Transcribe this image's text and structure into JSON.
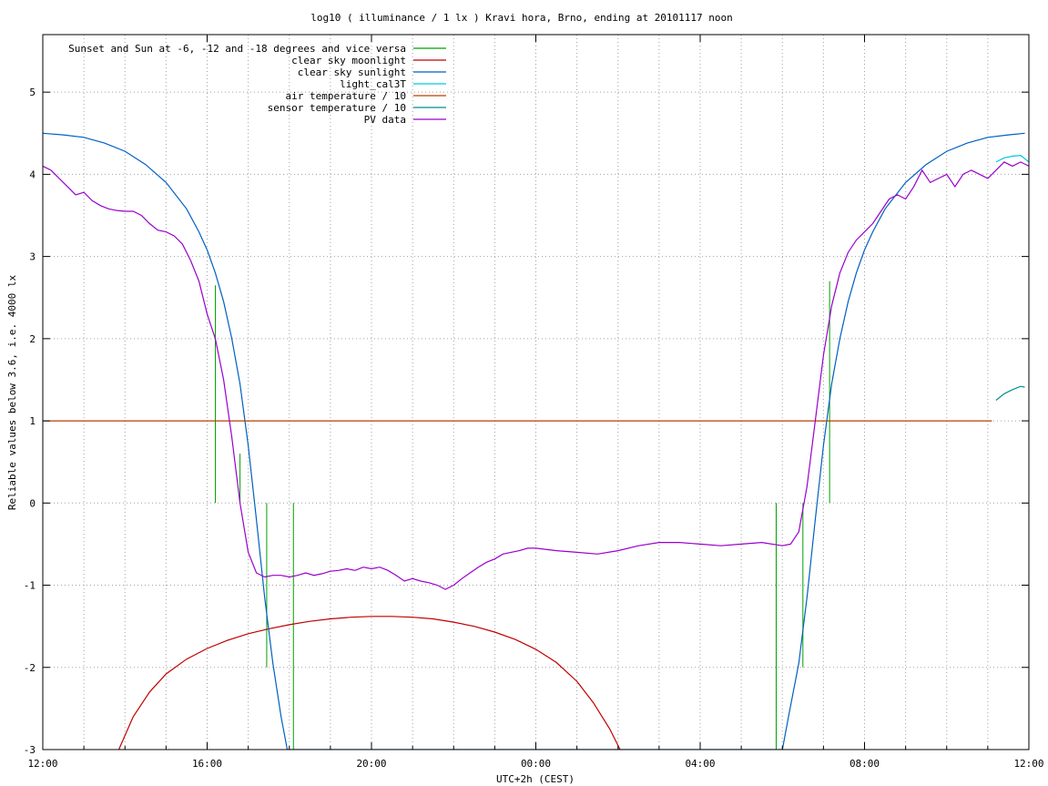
{
  "chart_data": {
    "type": "line",
    "title": "log10 ( illuminance / 1 lx ) Kravi hora, Brno, ending at 20101117 noon",
    "xlabel": "UTC+2h (CEST)",
    "ylabel": "Reliable values below 3.6, i.e. 4000 lx",
    "x_unit": "hours since 12:00",
    "xlim": [
      0,
      24
    ],
    "ylim": [
      -3,
      5.7
    ],
    "x_ticks": [
      {
        "x": 0,
        "label": "12:00"
      },
      {
        "x": 4,
        "label": "16:00"
      },
      {
        "x": 8,
        "label": "20:00"
      },
      {
        "x": 12,
        "label": "00:00"
      },
      {
        "x": 16,
        "label": "04:00"
      },
      {
        "x": 20,
        "label": "08:00"
      },
      {
        "x": 24,
        "label": "12:00"
      }
    ],
    "x_minor_grid": [
      1,
      2,
      3,
      5,
      6,
      7,
      9,
      10,
      11,
      13,
      14,
      15,
      17,
      18,
      19,
      21,
      22,
      23
    ],
    "y_ticks": [
      {
        "y": 5,
        "label": "5"
      },
      {
        "y": 4,
        "label": "4"
      },
      {
        "y": 3,
        "label": "3"
      },
      {
        "y": 2,
        "label": "2"
      },
      {
        "y": 1,
        "label": "1"
      },
      {
        "y": 0,
        "label": "0"
      },
      {
        "y": -1,
        "label": "-1"
      },
      {
        "y": -2,
        "label": "-2"
      },
      {
        "y": -3,
        "label": "-3"
      }
    ],
    "grid": true,
    "legend_position": "top-left",
    "series": [
      {
        "name": "Sunset and Sun at -6, -12 and -18 degrees and vice versa",
        "color": "#00a000",
        "style": "impulses",
        "impulses": [
          {
            "x": 4.2,
            "y_from": 0,
            "y_to": 2.65
          },
          {
            "x": 4.8,
            "y_from": 0,
            "y_to": 0.6
          },
          {
            "x": 5.45,
            "y_from": -2.0,
            "y_to": 0
          },
          {
            "x": 6.1,
            "y_from": -3.0,
            "y_to": 0
          },
          {
            "x": 17.85,
            "y_from": -3.0,
            "y_to": 0
          },
          {
            "x": 18.5,
            "y_from": -2.0,
            "y_to": 0
          },
          {
            "x": 19.15,
            "y_from": 0,
            "y_to": 2.7
          }
        ]
      },
      {
        "name": "clear sky moonlight",
        "color": "#c00000",
        "x": [
          1.85,
          2.2,
          2.6,
          3.0,
          3.5,
          4.0,
          4.5,
          5.0,
          5.5,
          6.0,
          6.5,
          7.0,
          7.5,
          8.0,
          8.5,
          9.0,
          9.5,
          10.0,
          10.5,
          11.0,
          11.5,
          12.0,
          12.5,
          13.0,
          13.4,
          13.8,
          14.05
        ],
        "values": [
          -3.0,
          -2.6,
          -2.3,
          -2.08,
          -1.9,
          -1.77,
          -1.67,
          -1.59,
          -1.53,
          -1.48,
          -1.44,
          -1.41,
          -1.39,
          -1.38,
          -1.38,
          -1.39,
          -1.41,
          -1.45,
          -1.5,
          -1.57,
          -1.66,
          -1.78,
          -1.94,
          -2.17,
          -2.43,
          -2.75,
          -3.0
        ]
      },
      {
        "name": "clear sky sunlight",
        "color": "#0060c0",
        "x": [
          0,
          0.5,
          1.0,
          1.5,
          2.0,
          2.5,
          3.0,
          3.5,
          3.8,
          4.0,
          4.2,
          4.4,
          4.6,
          4.8,
          5.0,
          5.2,
          5.4,
          5.6,
          5.8,
          5.95,
          18.0,
          18.15,
          18.4,
          18.6,
          18.8,
          19.0,
          19.2,
          19.4,
          19.6,
          19.8,
          20.0,
          20.2,
          20.5,
          21.0,
          21.5,
          22.0,
          22.5,
          23.0,
          23.5,
          23.9
        ],
        "values": [
          4.5,
          4.48,
          4.45,
          4.38,
          4.28,
          4.12,
          3.9,
          3.58,
          3.3,
          3.08,
          2.8,
          2.45,
          2.0,
          1.45,
          0.7,
          -0.2,
          -1.15,
          -1.95,
          -2.6,
          -3.0,
          -3.0,
          -2.6,
          -1.95,
          -1.15,
          -0.2,
          0.7,
          1.45,
          2.0,
          2.45,
          2.8,
          3.08,
          3.3,
          3.58,
          3.9,
          4.12,
          4.28,
          4.38,
          4.45,
          4.48,
          4.5
        ]
      },
      {
        "name": "light_cal3T",
        "color": "#00c8e0",
        "x": [
          23.2,
          23.4,
          23.6,
          23.8,
          24.0
        ],
        "values": [
          4.15,
          4.2,
          4.22,
          4.23,
          4.15
        ]
      },
      {
        "name": "air temperature / 10",
        "color": "#b84000",
        "x": [
          0,
          23.1
        ],
        "values": [
          1.0,
          1.0
        ]
      },
      {
        "name": "sensor temperature / 10",
        "color": "#009090",
        "x": [
          23.2,
          23.4,
          23.6,
          23.8,
          23.9
        ],
        "values": [
          1.25,
          1.33,
          1.38,
          1.42,
          1.41
        ]
      },
      {
        "name": "PV data",
        "color": "#9900cc",
        "x": [
          0,
          0.2,
          0.4,
          0.6,
          0.8,
          1.0,
          1.2,
          1.4,
          1.6,
          1.8,
          2.0,
          2.2,
          2.4,
          2.6,
          2.8,
          3.0,
          3.2,
          3.4,
          3.6,
          3.8,
          3.9,
          4.0,
          4.1,
          4.2,
          4.4,
          4.6,
          4.8,
          5.0,
          5.2,
          5.4,
          5.6,
          5.8,
          6.0,
          6.2,
          6.4,
          6.6,
          6.8,
          7.0,
          7.2,
          7.4,
          7.6,
          7.8,
          8.0,
          8.2,
          8.4,
          8.6,
          8.8,
          9.0,
          9.2,
          9.4,
          9.6,
          9.8,
          10.0,
          10.2,
          10.4,
          10.6,
          10.8,
          11.0,
          11.2,
          11.4,
          11.6,
          11.8,
          12.0,
          12.5,
          13.0,
          13.5,
          14.0,
          14.5,
          15.0,
          15.5,
          16.0,
          16.5,
          17.0,
          17.5,
          18.0,
          18.2,
          18.4,
          18.6,
          18.8,
          19.0,
          19.2,
          19.4,
          19.6,
          19.8,
          20.0,
          20.2,
          20.4,
          20.6,
          20.8,
          21.0,
          21.2,
          21.4,
          21.6,
          21.8,
          22.0,
          22.2,
          22.4,
          22.6,
          22.8,
          23.0,
          23.2,
          23.4,
          23.6,
          23.8,
          24.0
        ],
        "values": [
          4.1,
          4.05,
          3.95,
          3.85,
          3.75,
          3.78,
          3.68,
          3.62,
          3.58,
          3.56,
          3.55,
          3.55,
          3.5,
          3.4,
          3.32,
          3.3,
          3.25,
          3.15,
          2.95,
          2.7,
          2.5,
          2.3,
          2.15,
          2.0,
          1.5,
          0.8,
          0.0,
          -0.6,
          -0.85,
          -0.9,
          -0.88,
          -0.88,
          -0.9,
          -0.88,
          -0.85,
          -0.88,
          -0.86,
          -0.83,
          -0.82,
          -0.8,
          -0.82,
          -0.78,
          -0.8,
          -0.78,
          -0.82,
          -0.88,
          -0.95,
          -0.92,
          -0.95,
          -0.97,
          -1.0,
          -1.05,
          -1.0,
          -0.92,
          -0.85,
          -0.78,
          -0.72,
          -0.68,
          -0.62,
          -0.6,
          -0.58,
          -0.55,
          -0.55,
          -0.58,
          -0.6,
          -0.62,
          -0.58,
          -0.52,
          -0.48,
          -0.48,
          -0.5,
          -0.52,
          -0.5,
          -0.48,
          -0.52,
          -0.5,
          -0.35,
          0.2,
          1.0,
          1.8,
          2.4,
          2.8,
          3.05,
          3.2,
          3.3,
          3.4,
          3.55,
          3.7,
          3.75,
          3.7,
          3.85,
          4.05,
          3.9,
          3.95,
          4.0,
          3.85,
          4.0,
          4.05,
          4.0,
          3.95,
          4.05,
          4.15,
          4.1,
          4.15,
          4.1
        ]
      }
    ]
  }
}
